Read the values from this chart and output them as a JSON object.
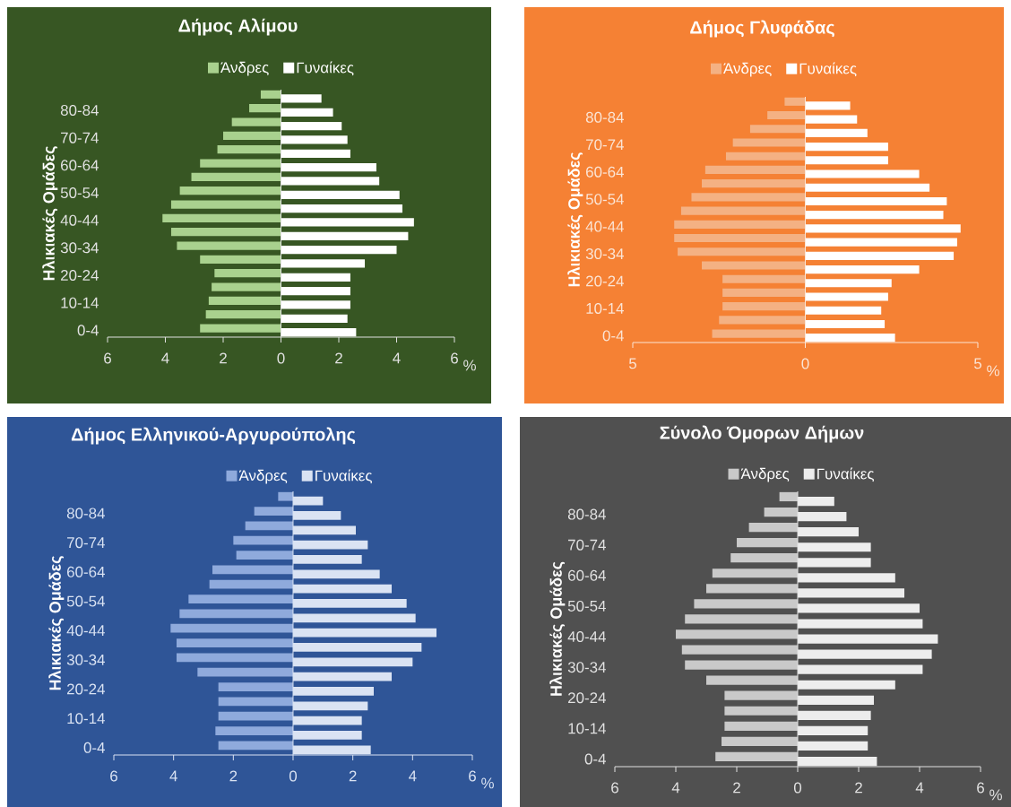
{
  "chart_data": [
    {
      "type": "bar",
      "orientation": "horizontal",
      "title": "Δήμος Αλίμου",
      "ylabel": "Ηλικιακές Ομάδες",
      "xlabel": "%",
      "legend": "top",
      "categories": [
        null,
        "80-84",
        null,
        "70-74",
        null,
        "60-64",
        null,
        "50-54",
        null,
        "40-44",
        null,
        "30-34",
        null,
        "20-24",
        null,
        "10-14",
        null,
        "0-4"
      ],
      "xlim": [
        -6,
        6
      ],
      "xticks": [
        {
          "value": -6,
          "label": "6"
        },
        {
          "value": -4,
          "label": "4"
        },
        {
          "value": -2,
          "label": "2"
        },
        0,
        2,
        4,
        6
      ],
      "series": [
        {
          "name": "Άνδρες",
          "color": "#a9d18e",
          "values": [
            -0.7,
            -1.1,
            -1.7,
            -2.0,
            -2.2,
            -2.8,
            -3.1,
            -3.5,
            -3.8,
            -4.1,
            -3.8,
            -3.6,
            -2.8,
            -2.3,
            -2.4,
            -2.5,
            -2.6,
            -2.8
          ]
        },
        {
          "name": "Γυναίκες",
          "color": "#ffffff",
          "values": [
            1.4,
            1.8,
            2.1,
            2.3,
            2.4,
            3.3,
            3.4,
            4.1,
            4.2,
            4.6,
            4.4,
            4.0,
            2.9,
            2.4,
            2.4,
            2.4,
            2.3,
            2.6
          ]
        }
      ]
    },
    {
      "type": "bar",
      "orientation": "horizontal",
      "title": "Δήμος  Γλυφάδας",
      "ylabel": "Ηλικιακές Ομάδες",
      "xlabel": "%",
      "legend": "top",
      "categories": [
        null,
        "80-84",
        null,
        "70-74",
        null,
        "60-64",
        null,
        "50-54",
        null,
        "40-44",
        null,
        "30-34",
        null,
        "20-24",
        null,
        "10-14",
        null,
        "0-4"
      ],
      "xlim": [
        -5,
        5
      ],
      "xticks": [
        {
          "value": -5,
          "label": "5"
        },
        0,
        5
      ],
      "series": [
        {
          "name": "Άνδρες",
          "color": "#f4b183",
          "values": [
            -0.6,
            -1.1,
            -1.6,
            -2.1,
            -2.3,
            -2.9,
            -3.0,
            -3.3,
            -3.6,
            -3.8,
            -3.8,
            -3.7,
            -3.0,
            -2.4,
            -2.4,
            -2.4,
            -2.5,
            -2.7
          ]
        },
        {
          "name": "Γυναίκες",
          "color": "#ffffff",
          "values": [
            1.3,
            1.5,
            1.8,
            2.4,
            2.4,
            3.3,
            3.6,
            4.1,
            4.0,
            4.5,
            4.4,
            4.3,
            3.3,
            2.5,
            2.4,
            2.2,
            2.3,
            2.6
          ]
        }
      ]
    },
    {
      "type": "bar",
      "orientation": "horizontal",
      "title": "Δήμος Ελληνικού-Αργυρούπολης",
      "ylabel": "Ηλικιακές Ομάδες",
      "xlabel": "%",
      "legend": "top",
      "categories": [
        null,
        "80-84",
        null,
        "70-74",
        null,
        "60-64",
        null,
        "50-54",
        null,
        "40-44",
        null,
        "30-34",
        null,
        "20-24",
        null,
        "10-14",
        null,
        "0-4"
      ],
      "xlim": [
        -6,
        6
      ],
      "xticks": [
        {
          "value": -6,
          "label": "6"
        },
        {
          "value": -4,
          "label": "4"
        },
        {
          "value": -2,
          "label": "2"
        },
        0,
        2,
        4,
        6
      ],
      "series": [
        {
          "name": "Άνδρες",
          "color": "#8faadc",
          "values": [
            -0.5,
            -1.3,
            -1.6,
            -2.0,
            -1.9,
            -2.7,
            -2.8,
            -3.5,
            -3.8,
            -4.1,
            -3.9,
            -3.9,
            -3.2,
            -2.5,
            -2.5,
            -2.5,
            -2.6,
            -2.5
          ]
        },
        {
          "name": "Γυναίκες",
          "color": "#dae3f3",
          "values": [
            1.0,
            1.6,
            2.1,
            2.5,
            2.3,
            2.9,
            3.3,
            3.8,
            4.1,
            4.8,
            4.3,
            4.0,
            3.3,
            2.7,
            2.5,
            2.3,
            2.3,
            2.6
          ]
        }
      ]
    },
    {
      "type": "bar",
      "orientation": "horizontal",
      "title": "Σύνολο Όμορων Δήμων",
      "ylabel": "Ηλικιακές Ομάδες",
      "xlabel": "%",
      "legend": "top",
      "categories": [
        null,
        "80-84",
        null,
        "70-74",
        null,
        "60-64",
        null,
        "50-54",
        null,
        "40-44",
        null,
        "30-34",
        null,
        "20-24",
        null,
        "10-14",
        null,
        "0-4"
      ],
      "xlim": [
        -6,
        6
      ],
      "xticks": [
        {
          "value": -6,
          "label": "6"
        },
        {
          "value": -4,
          "label": "4"
        },
        {
          "value": -2,
          "label": "2"
        },
        0,
        2,
        4,
        6
      ],
      "series": [
        {
          "name": "Άνδρες",
          "color": "#c9c9c9",
          "values": [
            -0.6,
            -1.1,
            -1.6,
            -2.0,
            -2.2,
            -2.8,
            -3.0,
            -3.4,
            -3.7,
            -4.0,
            -3.8,
            -3.7,
            -3.0,
            -2.4,
            -2.4,
            -2.4,
            -2.5,
            -2.7
          ]
        },
        {
          "name": "Γυναίκες",
          "color": "#ededed",
          "values": [
            1.2,
            1.6,
            2.0,
            2.4,
            2.4,
            3.2,
            3.5,
            4.0,
            4.1,
            4.6,
            4.4,
            4.1,
            3.2,
            2.5,
            2.4,
            2.3,
            2.3,
            2.6
          ]
        }
      ]
    }
  ]
}
